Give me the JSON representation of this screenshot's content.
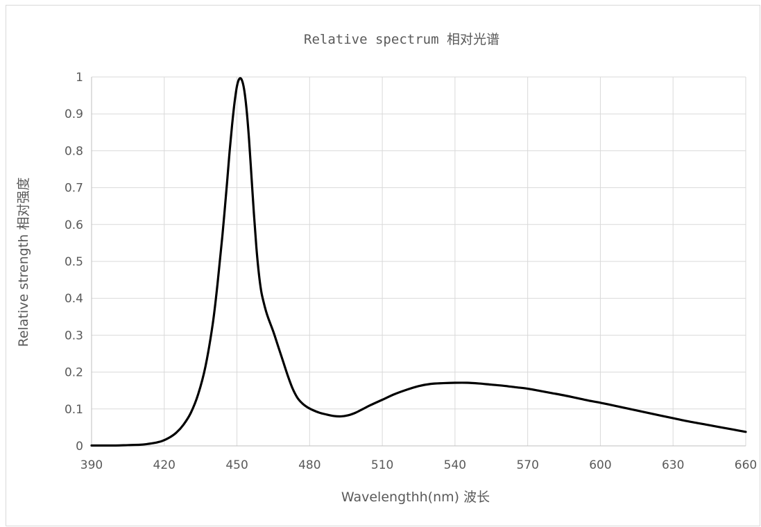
{
  "chart_data": {
    "type": "line",
    "title": "Relative spectrum 相对光谱",
    "xlabel": "Wavelengthh(nm) 波长",
    "ylabel": "Relative strength 相对强度",
    "xlim": [
      390,
      660
    ],
    "ylim": [
      0,
      1
    ],
    "x_ticks": [
      390,
      420,
      450,
      480,
      510,
      540,
      570,
      600,
      630,
      660
    ],
    "x_tick_labels": [
      "390",
      "420",
      "450",
      "480",
      "510",
      "540",
      "570",
      "600",
      "630",
      "660"
    ],
    "y_ticks": [
      0,
      0.1,
      0.2,
      0.3,
      0.4,
      0.5,
      0.6,
      0.7,
      0.8,
      0.9,
      1
    ],
    "y_tick_labels": [
      "0",
      "0.1",
      "0.2",
      "0.3",
      "0.4",
      "0.5",
      "0.6",
      "0.7",
      "0.8",
      "0.9",
      "1"
    ],
    "grid": true,
    "legend": "none",
    "series": [
      {
        "color": "#000000",
        "x": [
          390,
          395,
          400,
          405,
          410,
          413,
          416,
          419,
          422,
          425,
          428,
          431,
          434,
          437,
          440,
          442,
          444,
          446,
          447,
          448,
          449,
          450,
          451,
          452,
          453,
          454,
          455,
          456,
          457,
          458,
          459,
          460,
          461,
          462,
          463,
          465,
          467,
          469,
          471,
          473,
          475,
          477,
          479,
          481,
          484,
          487,
          490,
          493,
          496,
          499,
          502,
          505,
          510,
          515,
          520,
          525,
          530,
          535,
          540,
          545,
          550,
          555,
          560,
          565,
          570,
          575,
          580,
          585,
          590,
          595,
          600,
          605,
          610,
          615,
          620,
          625,
          630,
          635,
          640,
          645,
          650,
          655,
          660
        ],
        "y": [
          0.001,
          0.001,
          0.001,
          0.002,
          0.003,
          0.005,
          0.008,
          0.013,
          0.022,
          0.036,
          0.058,
          0.09,
          0.14,
          0.215,
          0.33,
          0.44,
          0.57,
          0.72,
          0.8,
          0.87,
          0.93,
          0.975,
          0.995,
          0.992,
          0.965,
          0.91,
          0.83,
          0.73,
          0.63,
          0.54,
          0.47,
          0.42,
          0.39,
          0.365,
          0.345,
          0.31,
          0.27,
          0.23,
          0.19,
          0.155,
          0.13,
          0.115,
          0.105,
          0.098,
          0.09,
          0.085,
          0.081,
          0.08,
          0.083,
          0.09,
          0.1,
          0.11,
          0.125,
          0.14,
          0.152,
          0.162,
          0.168,
          0.17,
          0.171,
          0.171,
          0.169,
          0.166,
          0.163,
          0.159,
          0.155,
          0.149,
          0.143,
          0.137,
          0.13,
          0.123,
          0.117,
          0.11,
          0.103,
          0.096,
          0.089,
          0.082,
          0.075,
          0.068,
          0.062,
          0.056,
          0.05,
          0.044,
          0.038
        ]
      }
    ]
  }
}
